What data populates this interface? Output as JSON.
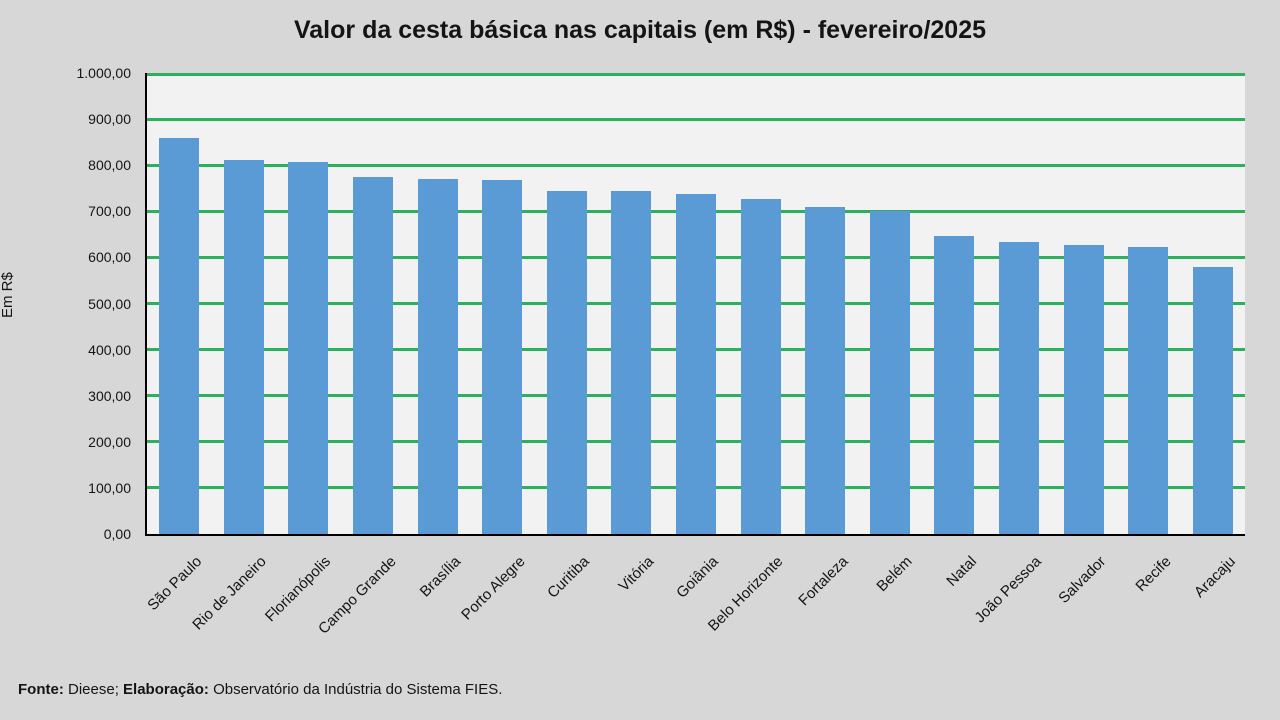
{
  "title": "Valor da cesta básica nas capitais (em R$) - fevereiro/2025",
  "y_axis": {
    "label": "Em R$",
    "ticks_top_to_bottom": [
      "1.000,00",
      "900,00",
      "800,00",
      "700,00",
      "600,00",
      "500,00",
      "400,00",
      "300,00",
      "200,00",
      "100,00",
      "0,00"
    ]
  },
  "footer": {
    "source_label": "Fonte:",
    "source_text": " Dieese; ",
    "elaboration_label": "Elaboração:",
    "elaboration_text": " Observatório da Indústria do Sistema FIES."
  },
  "colors": {
    "background": "#D7D7D7",
    "plot_background": "#F1F2F1",
    "bar_fill": "#5B9BD5",
    "gridline_green": "#2BB05C",
    "axis_black": "#000000",
    "text": "#141414"
  },
  "chart_data": {
    "type": "bar",
    "title": "Valor da cesta básica nas capitais (em R$) - fevereiro/2025",
    "xlabel": "",
    "ylabel": "Em R$",
    "ylim": [
      0,
      1000
    ],
    "ytick_step": 100,
    "grid": true,
    "legend_position": "none",
    "categories": [
      "São Paulo",
      "Rio de Janeiro",
      "Florianópolis",
      "Campo Grande",
      "Brasília",
      "Porto Alegre",
      "Curitiba",
      "Vitória",
      "Goiânia",
      "Belo Horizonte",
      "Fortaleza",
      "Belém",
      "Natal",
      "João Pessoa",
      "Salvador",
      "Recife",
      "Aracaju"
    ],
    "values": [
      860,
      812,
      806,
      775,
      771,
      769,
      744,
      744,
      738,
      726,
      710,
      700,
      647,
      634,
      628,
      623,
      580
    ]
  }
}
